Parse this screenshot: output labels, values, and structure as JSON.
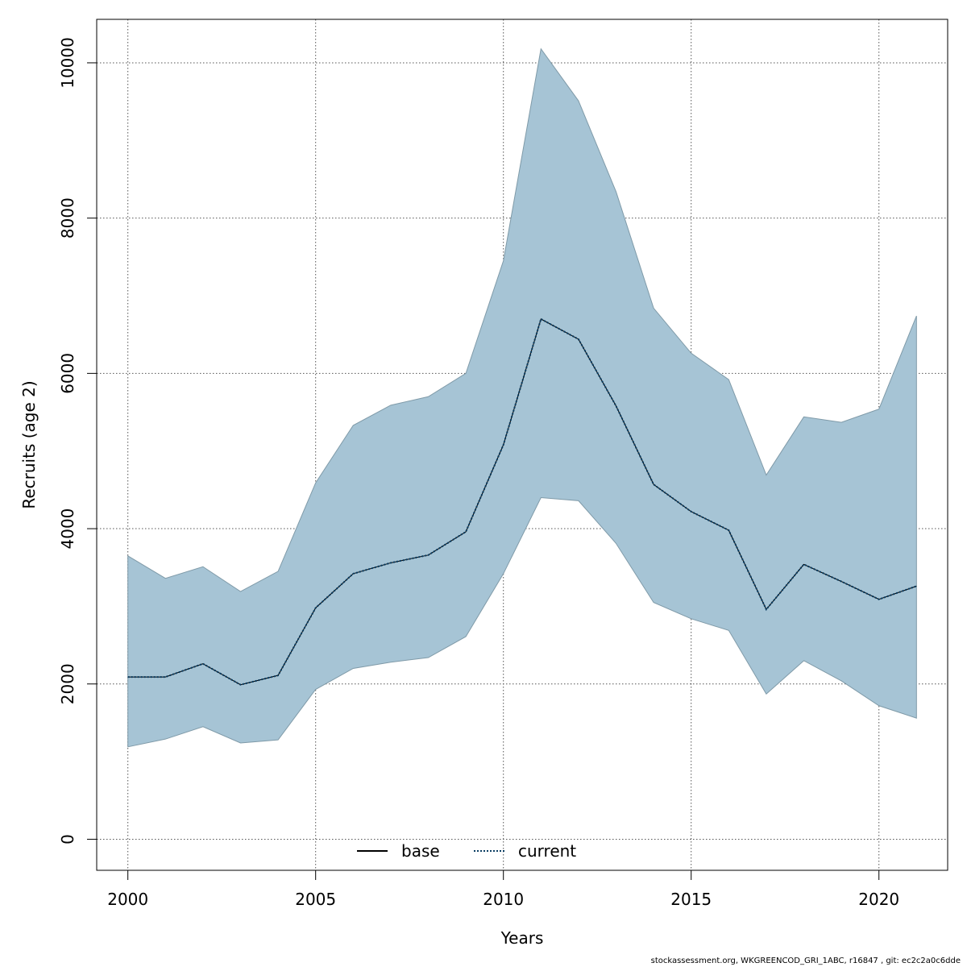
{
  "chart_data": {
    "type": "line",
    "title": "",
    "xlabel": "Years",
    "ylabel": "Recruits (age 2)",
    "xlim": [
      1999.17,
      2021.83
    ],
    "ylim": [
      -400,
      10560
    ],
    "x_ticks": [
      2000,
      2005,
      2010,
      2015,
      2020
    ],
    "y_ticks": [
      0,
      2000,
      4000,
      6000,
      8000,
      10000
    ],
    "grid": true,
    "legend": {
      "placement": "bottom-center",
      "horizontal": true
    },
    "colors": {
      "band_fill": "#a6c4d5",
      "band_edge": "#7f9aa8",
      "base": "#000000",
      "current": "#0a3d62"
    },
    "x": [
      2000,
      2001,
      2002,
      2003,
      2004,
      2005,
      2006,
      2007,
      2008,
      2009,
      2010,
      2011,
      2012,
      2013,
      2014,
      2015,
      2016,
      2017,
      2018,
      2019,
      2020,
      2021
    ],
    "band": {
      "lower": [
        1190,
        1290,
        1450,
        1240,
        1280,
        1930,
        2200,
        2280,
        2340,
        2610,
        3420,
        4400,
        4360,
        3810,
        3050,
        2840,
        2690,
        1870,
        2300,
        2040,
        1720,
        1560
      ],
      "upper": [
        3650,
        3360,
        3510,
        3190,
        3450,
        4590,
        5330,
        5590,
        5700,
        6000,
        7450,
        10180,
        9510,
        8340,
        6840,
        6260,
        5920,
        4690,
        5440,
        5370,
        5540,
        6740
      ]
    },
    "series": [
      {
        "name": "base",
        "style": "solid",
        "values": [
          2090,
          2090,
          2260,
          1990,
          2110,
          2980,
          3420,
          3560,
          3660,
          3960,
          5080,
          6700,
          6440,
          5580,
          4570,
          4220,
          3980,
          2960,
          3540,
          3320,
          3090,
          3260
        ]
      },
      {
        "name": "current",
        "style": "dotted",
        "values": [
          2090,
          2090,
          2260,
          1990,
          2110,
          2980,
          3420,
          3560,
          3660,
          3960,
          5080,
          6700,
          6440,
          5580,
          4570,
          4220,
          3980,
          2960,
          3540,
          3320,
          3090,
          3260
        ]
      }
    ]
  },
  "footer": "stockassessment.org, WKGREENCOD_GRI_1ABC, r16847 , git: ec2c2a0c6dde"
}
